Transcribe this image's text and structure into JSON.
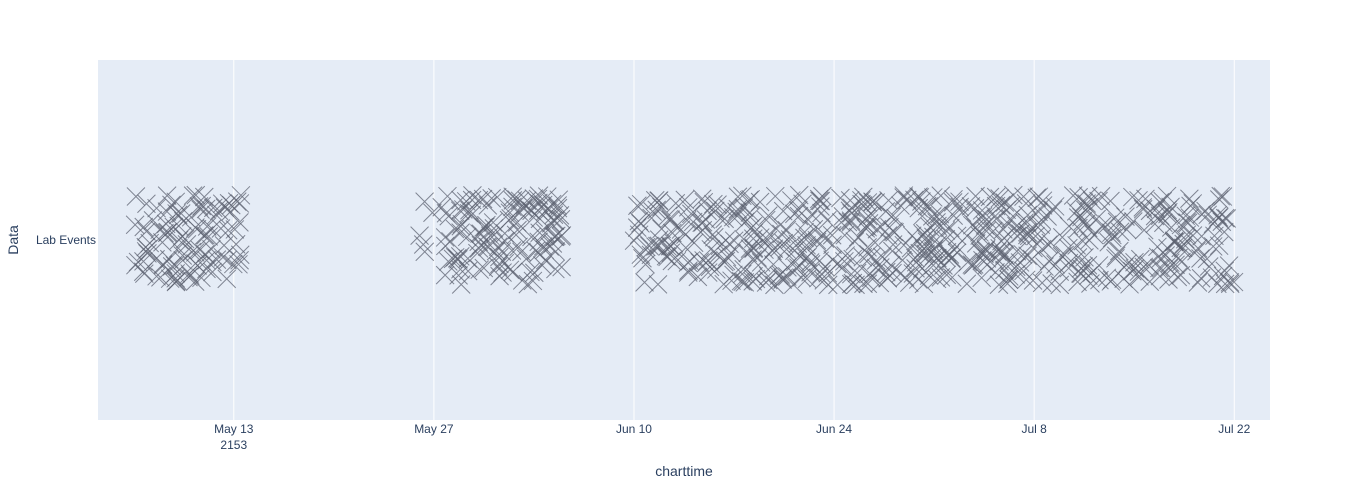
{
  "chart_data": {
    "type": "scatter",
    "marker": "x-thin",
    "xlabel": "charttime",
    "ylabel": "Data",
    "x_year": "2153",
    "xlim": [
      "2153-05-03T12:00",
      "2153-07-24T12:00"
    ],
    "x_ticks": [
      {
        "date": "2153-05-13",
        "label": "May 13"
      },
      {
        "date": "2153-05-27",
        "label": "May 27"
      },
      {
        "date": "2153-06-10",
        "label": "Jun 10"
      },
      {
        "date": "2153-06-24",
        "label": "Jun 24"
      },
      {
        "date": "2153-07-08",
        "label": "Jul 8"
      },
      {
        "date": "2153-07-22",
        "label": "Jul 22"
      }
    ],
    "categories": [
      "Lab Events"
    ],
    "grid": true,
    "colors": {
      "plot_bg": "#e5ecf6",
      "grid": "#ffffff",
      "marker": "#5c6270",
      "text": "#2a3f5f"
    },
    "series": [
      {
        "category": "Lab Events",
        "clusters": [
          {
            "start": "2153-05-06",
            "end": "2153-05-13T12:00",
            "count": 110
          },
          {
            "start": "2153-05-26",
            "end": "2153-06-05",
            "count": 140
          },
          {
            "start": "2153-06-10",
            "end": "2153-07-22",
            "count": 620
          }
        ]
      }
    ]
  }
}
